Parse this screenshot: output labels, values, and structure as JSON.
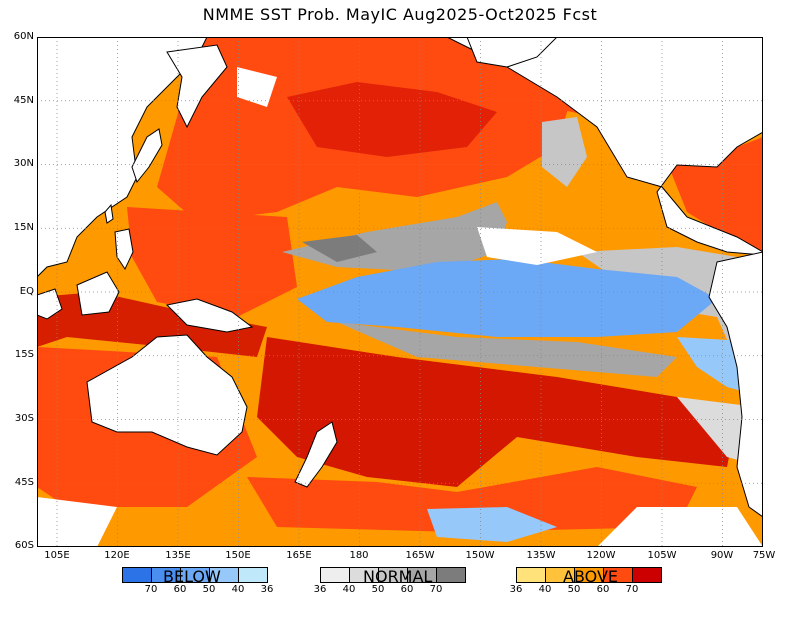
{
  "title": "NMME SST Prob. MayIC  Aug2025-Oct2025 Fcst",
  "axes": {
    "lat_labels": [
      "60N",
      "45N",
      "30N",
      "15N",
      "EQ",
      "15S",
      "30S",
      "45S",
      "60S"
    ],
    "lon_labels": [
      "105E",
      "120E",
      "135E",
      "150E",
      "165E",
      "180",
      "165W",
      "150W",
      "135W",
      "120W",
      "105W",
      "90W",
      "75W"
    ],
    "lon_range": [
      100,
      280
    ],
    "lat_range": [
      -60,
      60
    ]
  },
  "legend": {
    "below": {
      "name": "BELOW",
      "colors": [
        "#2b73e6",
        "#4a8ef0",
        "#6ba8f5",
        "#96c8f9",
        "#bfe8fb"
      ],
      "ticks": [
        "70",
        "60",
        "50",
        "40",
        "36"
      ]
    },
    "normal": {
      "name": "NORMAL",
      "colors": [
        "#eeeeee",
        "#dcdcdc",
        "#c6c6c6",
        "#a6a6a6",
        "#7c7c7c"
      ],
      "ticks": [
        "36",
        "40",
        "50",
        "60",
        "70"
      ]
    },
    "above": {
      "name": "ABOVE",
      "colors": [
        "#ffe27a",
        "#ffc23a",
        "#ff9900",
        "#ff4a10",
        "#cc0000"
      ],
      "ticks": [
        "36",
        "40",
        "50",
        "60",
        "70"
      ]
    }
  }
}
